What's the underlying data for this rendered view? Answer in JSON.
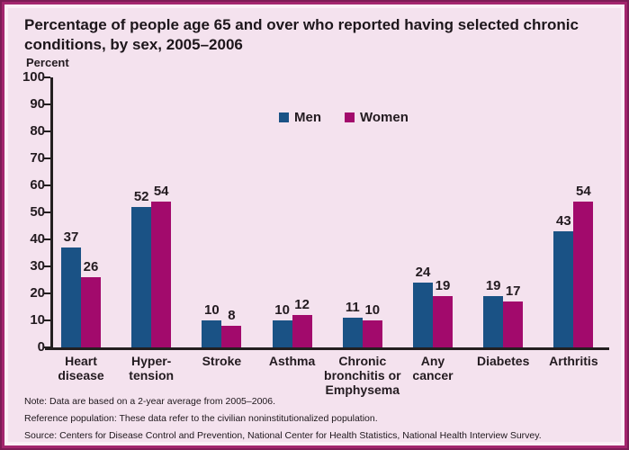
{
  "title": "Percentage of people age 65 and over who reported having selected chronic conditions, by sex, 2005–2006",
  "chart_data": {
    "type": "bar",
    "title": "Percentage of people age 65 and over who reported having selected chronic conditions, by sex, 2005–2006",
    "xlabel": "",
    "ylabel": "Percent",
    "ylim": [
      0,
      100
    ],
    "yticks": [
      0,
      10,
      20,
      30,
      40,
      50,
      60,
      70,
      80,
      90,
      100
    ],
    "grid": false,
    "legend_position": "top-center",
    "categories": [
      "Heart\ndisease",
      "Hyper-\ntension",
      "Stroke",
      "Asthma",
      "Chronic\nbronchitis or\nEmphysema",
      "Any\ncancer",
      "Diabetes",
      "Arthritis"
    ],
    "series": [
      {
        "name": "Men",
        "color": "#1a5285",
        "values": [
          37,
          52,
          10,
          10,
          11,
          24,
          19,
          43
        ]
      },
      {
        "name": "Women",
        "color": "#a20a6c",
        "values": [
          26,
          54,
          8,
          12,
          10,
          19,
          17,
          54
        ]
      }
    ]
  },
  "notes": {
    "note": "Note: Data are based on a 2-year average from 2005–2006.",
    "reference": "Reference population: These data refer to the civilian noninstitutionalized population.",
    "source": "Source: Centers for Disease Control and Prevention, National Center for Health Statistics, National Health Interview Survey."
  },
  "colors": {
    "background": "#f4e2ee",
    "frame_outer": "#7c1c56",
    "frame_inner": "#a3266e",
    "axis": "#231f20",
    "men": "#1a5285",
    "women": "#a20a6c"
  }
}
